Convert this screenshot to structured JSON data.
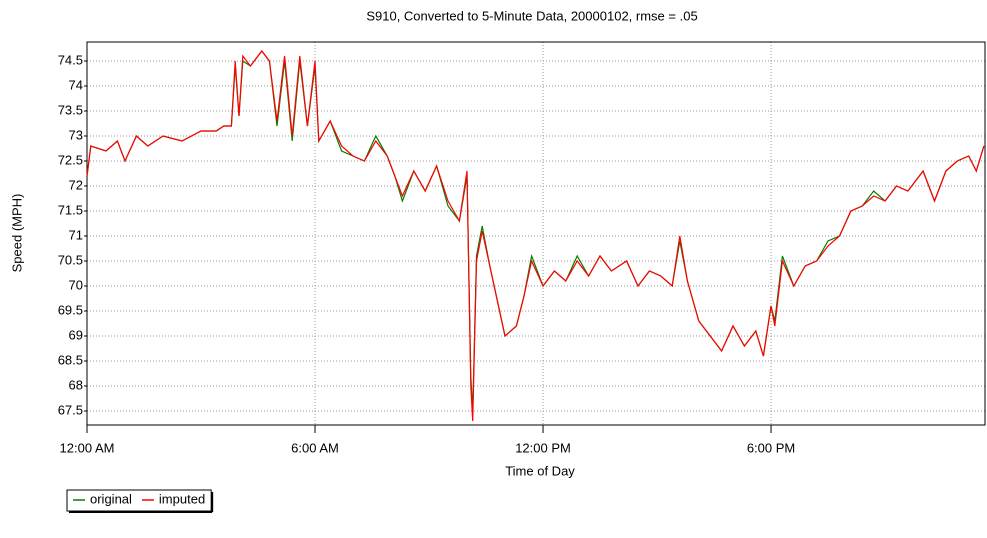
{
  "chart_data": {
    "type": "line",
    "title": "S910, Converted to 5-Minute Data, 20000102, rmse = .05",
    "x_label": "Time of Day",
    "y_label": "Speed (MPH)",
    "x": [
      0,
      0.1,
      0.5,
      0.8,
      1.0,
      1.3,
      1.6,
      2.0,
      2.5,
      3.0,
      3.4,
      3.6,
      3.8,
      3.9,
      4.0,
      4.1,
      4.3,
      4.6,
      4.8,
      5.0,
      5.2,
      5.4,
      5.6,
      5.8,
      6.0,
      6.1,
      6.4,
      6.7,
      7.0,
      7.3,
      7.6,
      7.9,
      8.1,
      8.3,
      8.6,
      8.9,
      9.2,
      9.5,
      9.8,
      10.0,
      10.1,
      10.15,
      10.25,
      10.4,
      10.6,
      10.8,
      11.0,
      11.3,
      11.5,
      11.7,
      12.0,
      12.3,
      12.6,
      12.9,
      13.2,
      13.5,
      13.8,
      14.2,
      14.5,
      14.8,
      15.1,
      15.4,
      15.6,
      15.8,
      16.1,
      16.4,
      16.7,
      17.0,
      17.3,
      17.6,
      17.8,
      18.0,
      18.1,
      18.3,
      18.6,
      18.9,
      19.2,
      19.5,
      19.8,
      20.1,
      20.4,
      20.7,
      21.0,
      21.3,
      21.6,
      22.0,
      22.3,
      22.6,
      22.9,
      23.2,
      23.4,
      23.6
    ],
    "series": [
      {
        "name": "original",
        "color": "#008000",
        "values": [
          72.2,
          72.8,
          72.7,
          72.9,
          72.5,
          73.0,
          72.8,
          73.0,
          72.9,
          73.1,
          73.1,
          73.2,
          73.2,
          74.4,
          73.4,
          74.5,
          74.4,
          74.7,
          74.5,
          73.2,
          74.5,
          72.9,
          74.5,
          73.2,
          74.4,
          72.9,
          73.3,
          72.7,
          72.6,
          72.5,
          73.0,
          72.6,
          72.2,
          71.7,
          72.3,
          71.9,
          72.4,
          71.6,
          71.3,
          72.2,
          68.2,
          67.5,
          70.6,
          71.2,
          70.4,
          69.7,
          69.0,
          69.2,
          69.8,
          70.6,
          70.0,
          70.3,
          70.1,
          70.6,
          70.2,
          70.6,
          70.3,
          70.5,
          70.0,
          70.3,
          70.2,
          70.0,
          70.9,
          70.1,
          69.3,
          69.0,
          68.7,
          69.2,
          68.8,
          69.1,
          68.6,
          69.6,
          69.3,
          70.6,
          70.0,
          70.4,
          70.5,
          70.9,
          71.0,
          71.5,
          71.6,
          71.9,
          71.7,
          72.0,
          71.9,
          72.3,
          71.7,
          72.3,
          72.5,
          72.6,
          72.3,
          72.8
        ]
      },
      {
        "name": "imputed",
        "color": "#ff0000",
        "values": [
          72.2,
          72.8,
          72.7,
          72.9,
          72.5,
          73.0,
          72.8,
          73.0,
          72.9,
          73.1,
          73.1,
          73.2,
          73.2,
          74.5,
          73.4,
          74.6,
          74.4,
          74.7,
          74.5,
          73.3,
          74.6,
          73.0,
          74.6,
          73.2,
          74.5,
          72.9,
          73.3,
          72.8,
          72.6,
          72.5,
          72.9,
          72.6,
          72.2,
          71.8,
          72.3,
          71.9,
          72.4,
          71.7,
          71.3,
          72.3,
          68.0,
          67.3,
          70.5,
          71.1,
          70.4,
          69.7,
          69.0,
          69.2,
          69.8,
          70.5,
          70.0,
          70.3,
          70.1,
          70.5,
          70.2,
          70.6,
          70.3,
          70.5,
          70.0,
          70.3,
          70.2,
          70.0,
          71.0,
          70.1,
          69.3,
          69.0,
          68.7,
          69.2,
          68.8,
          69.1,
          68.6,
          69.6,
          69.2,
          70.5,
          70.0,
          70.4,
          70.5,
          70.8,
          71.0,
          71.5,
          71.6,
          71.8,
          71.7,
          72.0,
          71.9,
          72.3,
          71.7,
          72.3,
          72.5,
          72.6,
          72.3,
          72.8
        ]
      }
    ],
    "xlim": [
      0,
      23.63
    ],
    "xticks": [
      {
        "value": 0,
        "label": "12:00 AM"
      },
      {
        "value": 6,
        "label": "6:00 AM"
      },
      {
        "value": 12,
        "label": "12:00 PM"
      },
      {
        "value": 18,
        "label": "6:00 PM"
      }
    ],
    "ylim": [
      67.22,
      74.88
    ],
    "yticks": [
      67.5,
      68,
      68.5,
      69,
      69.5,
      70,
      70.5,
      71,
      71.5,
      72,
      72.5,
      73,
      73.5,
      74,
      74.5
    ],
    "grid": true,
    "legend": "bottom-left"
  }
}
